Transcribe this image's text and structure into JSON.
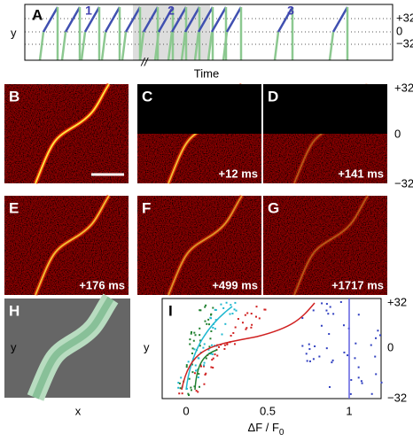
{
  "panel_a": {
    "label": "A",
    "y_label": "y",
    "segment_labels": [
      "1",
      "2",
      "3"
    ],
    "break_mark": "//",
    "x_label": "Time"
  },
  "y_ticks": [
    "+32",
    "0",
    "−32"
  ],
  "images": [
    {
      "label": "B"
    },
    {
      "label": "C",
      "time": "+12 ms"
    },
    {
      "label": "D",
      "time": "+141 ms"
    },
    {
      "label": "E",
      "time": "+176 ms"
    },
    {
      "label": "F",
      "time": "+499 ms"
    },
    {
      "label": "G",
      "time": "+1717 ms"
    }
  ],
  "panel_h": {
    "label": "H",
    "x_label": "x",
    "y_label": "y"
  },
  "panel_i": {
    "label": "I",
    "y_label": "y",
    "x_ticks": [
      "0",
      "0.5",
      "1"
    ],
    "x_label": "ΔF / F",
    "x_label_sub": "0"
  }
}
